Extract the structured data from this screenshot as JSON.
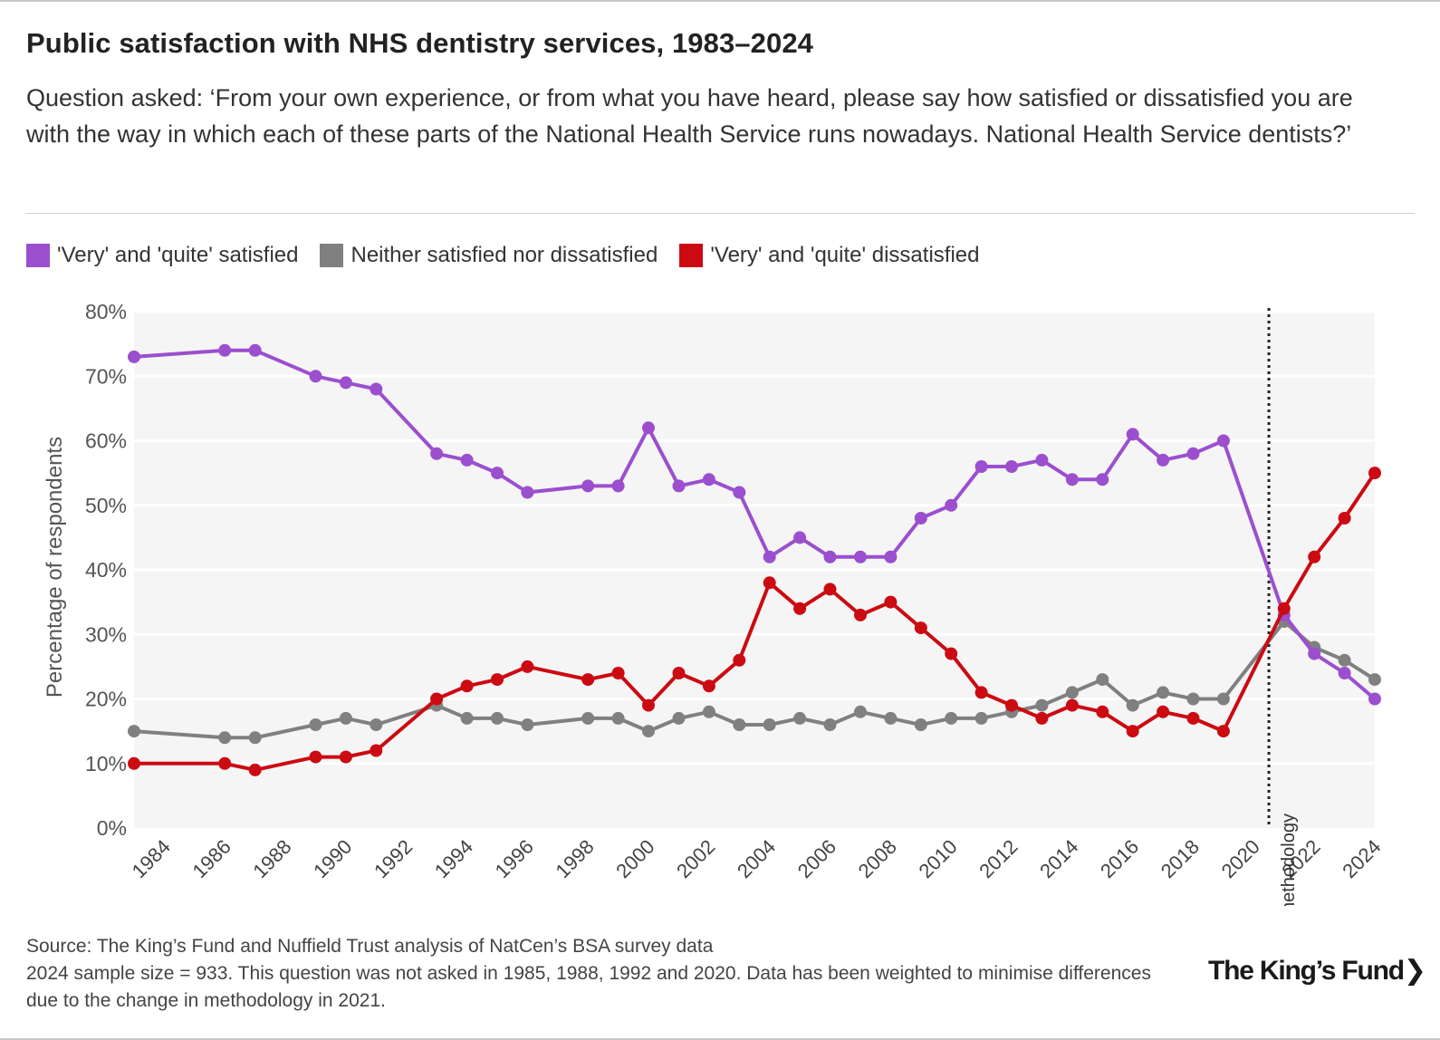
{
  "title": "Public satisfaction with NHS dentistry services, 1983–2024",
  "subtitle": "Question asked: ‘From your own experience, or from what you have heard, please say how satisfied or dissatisfied you are with the way in which each of these parts of the National Health Service runs nowadays. National Health Service dentists?’",
  "legend": [
    {
      "label": "'Very' and 'quite' satisfied",
      "color": "#9b4fce"
    },
    {
      "label": "Neither satisfied nor dissatisfied",
      "color": "#808080"
    },
    {
      "label": "'Very' and 'quite' dissatisfied",
      "color": "#cc0a12"
    }
  ],
  "source": {
    "line1": "Source: The King’s Fund and Nuffield Trust analysis of NatCen’s BSA survey data",
    "line2": "2024 sample size = 933. This question was not asked in 1985, 1988, 1992 and 2020. Data has been weighted to minimise differences due to the change in methodology in 2021."
  },
  "logo": "The King’s Fund",
  "logo_chevron": "❯",
  "chart_data": {
    "type": "line",
    "title": "Public satisfaction with NHS dentistry services, 1983–2024",
    "xlabel": "",
    "ylabel": "Percentage of respondents",
    "xlim": [
      1983,
      2024
    ],
    "ylim": [
      0,
      80
    ],
    "yticks": [
      0,
      10,
      20,
      30,
      40,
      50,
      60,
      70,
      80
    ],
    "ytick_labels": [
      "0%",
      "10%",
      "20%",
      "30%",
      "40%",
      "50%",
      "60%",
      "70%",
      "80%"
    ],
    "xticks": [
      1984,
      1986,
      1988,
      1990,
      1992,
      1994,
      1996,
      1998,
      2000,
      2002,
      2004,
      2006,
      2008,
      2010,
      2012,
      2014,
      2016,
      2018,
      2020,
      2022,
      2024
    ],
    "xtick_labels": [
      "1984",
      "1986",
      "1988",
      "1990",
      "1992",
      "1994",
      "1996",
      "1998",
      "2000",
      "2002",
      "2004",
      "2006",
      "2008",
      "2010",
      "2012",
      "2014",
      "2016",
      "2018",
      "2020",
      "2022",
      "2024"
    ],
    "x": [
      1983,
      1986,
      1987,
      1989,
      1990,
      1991,
      1993,
      1994,
      1995,
      1996,
      1998,
      1999,
      2000,
      2001,
      2002,
      2003,
      2004,
      2005,
      2006,
      2007,
      2008,
      2009,
      2010,
      2011,
      2012,
      2013,
      2014,
      2015,
      2016,
      2017,
      2018,
      2019,
      2021,
      2022,
      2023,
      2024
    ],
    "series": [
      {
        "name": "'Very' and 'quite' satisfied",
        "color": "#9b4fce",
        "values": [
          73,
          74,
          74,
          70,
          69,
          68,
          58,
          57,
          55,
          52,
          53,
          53,
          62,
          53,
          54,
          52,
          42,
          45,
          42,
          42,
          42,
          48,
          50,
          56,
          56,
          57,
          54,
          54,
          61,
          57,
          58,
          60,
          33,
          27,
          24,
          20
        ]
      },
      {
        "name": "Neither satisfied nor dissatisfied",
        "color": "#808080",
        "values": [
          15,
          14,
          14,
          16,
          17,
          16,
          19,
          17,
          17,
          16,
          17,
          17,
          15,
          17,
          18,
          16,
          16,
          17,
          16,
          18,
          17,
          16,
          17,
          17,
          18,
          19,
          21,
          23,
          19,
          21,
          20,
          20,
          32,
          28,
          26,
          23
        ]
      },
      {
        "name": "'Very' and 'quite' dissatisfied",
        "color": "#cc0a12",
        "values": [
          10,
          10,
          9,
          11,
          11,
          12,
          20,
          22,
          23,
          25,
          23,
          24,
          19,
          24,
          22,
          26,
          38,
          34,
          37,
          33,
          35,
          31,
          27,
          21,
          19,
          17,
          19,
          18,
          15,
          18,
          17,
          15,
          34,
          42,
          48,
          55
        ]
      }
    ],
    "annotation": {
      "text": "Change in methodology",
      "x": 2020.5
    }
  }
}
